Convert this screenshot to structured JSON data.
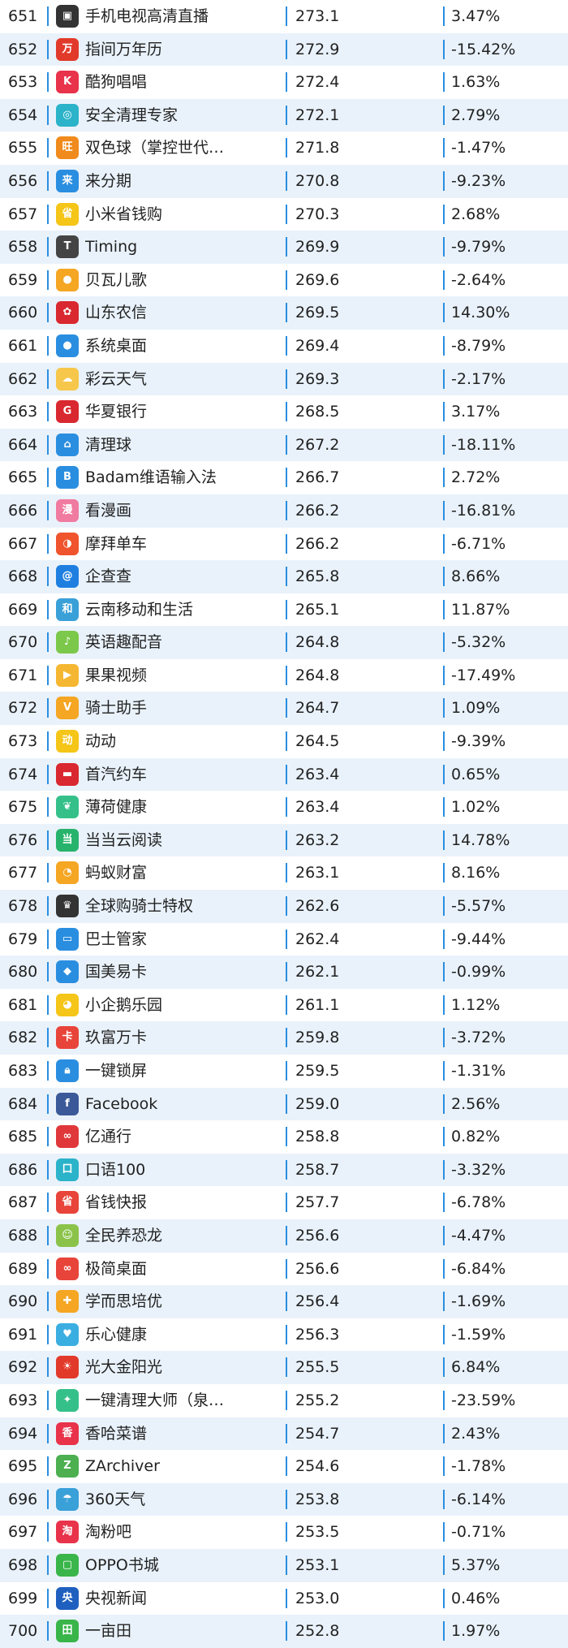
{
  "colors": {
    "row_stripe": "#e9f2fb",
    "separator": "#2a8ee0",
    "text": "#222222"
  },
  "rows": [
    {
      "rank": "651",
      "name": "手机电视高清直播",
      "value": "273.1",
      "change": "3.47%",
      "icon": "tv-icon",
      "color": "#333333",
      "glyph": "▣"
    },
    {
      "rank": "652",
      "name": "指间万年历",
      "value": "272.9",
      "change": "-15.42%",
      "icon": "calendar-icon",
      "color": "#e23a2a",
      "glyph": "万"
    },
    {
      "rank": "653",
      "name": "酷狗唱唱",
      "value": "272.4",
      "change": "1.63%",
      "icon": "kugou-sing-icon",
      "color": "#e8334a",
      "glyph": "K"
    },
    {
      "rank": "654",
      "name": "安全清理专家",
      "value": "272.1",
      "change": "2.79%",
      "icon": "cleaner-icon",
      "color": "#2bb3c9",
      "glyph": "◎"
    },
    {
      "rank": "655",
      "name": "双色球（掌控世代…",
      "value": "271.8",
      "change": "-1.47%",
      "icon": "lottery-icon",
      "color": "#f08a1c",
      "glyph": "旺"
    },
    {
      "rank": "656",
      "name": "来分期",
      "value": "270.8",
      "change": "-9.23%",
      "icon": "installment-icon",
      "color": "#2a8ee0",
      "glyph": "来"
    },
    {
      "rank": "657",
      "name": "小米省钱购",
      "value": "270.3",
      "change": "2.68%",
      "icon": "shopping-icon",
      "color": "#f5c518",
      "glyph": "省"
    },
    {
      "rank": "658",
      "name": "Timing",
      "value": "269.9",
      "change": "-9.79%",
      "icon": "timing-icon",
      "color": "#444444",
      "glyph": "T"
    },
    {
      "rank": "659",
      "name": "贝瓦儿歌",
      "value": "269.6",
      "change": "-2.64%",
      "icon": "kids-song-icon",
      "color": "#f5a623",
      "glyph": "●"
    },
    {
      "rank": "660",
      "name": "山东农信",
      "value": "269.5",
      "change": "14.30%",
      "icon": "bank-icon",
      "color": "#d9282f",
      "glyph": "✿"
    },
    {
      "rank": "661",
      "name": "系统桌面",
      "value": "269.4",
      "change": "-8.79%",
      "icon": "launcher-icon",
      "color": "#2a8ee0",
      "glyph": "●"
    },
    {
      "rank": "662",
      "name": "彩云天气",
      "value": "269.3",
      "change": "-2.17%",
      "icon": "weather-icon",
      "color": "#f6c74a",
      "glyph": "☁"
    },
    {
      "rank": "663",
      "name": "华夏银行",
      "value": "268.5",
      "change": "3.17%",
      "icon": "hxb-bank-icon",
      "color": "#d9282f",
      "glyph": "G"
    },
    {
      "rank": "664",
      "name": "清理球",
      "value": "267.2",
      "change": "-18.11%",
      "icon": "clean-ball-icon",
      "color": "#2a8ee0",
      "glyph": "⌂"
    },
    {
      "rank": "665",
      "name": "Badam维语输入法",
      "value": "266.7",
      "change": "2.72%",
      "icon": "keyboard-icon",
      "color": "#2a8ee0",
      "glyph": "B"
    },
    {
      "rank": "666",
      "name": "看漫画",
      "value": "266.2",
      "change": "-16.81%",
      "icon": "comic-icon",
      "color": "#f07aa0",
      "glyph": "漫"
    },
    {
      "rank": "667",
      "name": "摩拜单车",
      "value": "266.2",
      "change": "-6.71%",
      "icon": "bike-icon",
      "color": "#f0542d",
      "glyph": "◑"
    },
    {
      "rank": "668",
      "name": "企查查",
      "value": "265.8",
      "change": "8.66%",
      "icon": "company-search-icon",
      "color": "#1f7fe0",
      "glyph": "@"
    },
    {
      "rank": "669",
      "name": "云南移动和生活",
      "value": "265.1",
      "change": "11.87%",
      "icon": "mobile-life-icon",
      "color": "#3aa0d8",
      "glyph": "和"
    },
    {
      "rank": "670",
      "name": "英语趣配音",
      "value": "264.8",
      "change": "-5.32%",
      "icon": "dubbing-icon",
      "color": "#7cc84a",
      "glyph": "♪"
    },
    {
      "rank": "671",
      "name": "果果视频",
      "value": "264.8",
      "change": "-17.49%",
      "icon": "video-icon",
      "color": "#f5b731",
      "glyph": "▶"
    },
    {
      "rank": "672",
      "name": "骑士助手",
      "value": "264.7",
      "change": "1.09%",
      "icon": "knight-icon",
      "color": "#f5a623",
      "glyph": "V"
    },
    {
      "rank": "673",
      "name": "动动",
      "value": "264.5",
      "change": "-9.39%",
      "icon": "sport-icon",
      "color": "#f5c518",
      "glyph": "动"
    },
    {
      "rank": "674",
      "name": "首汽约车",
      "value": "263.4",
      "change": "0.65%",
      "icon": "car-icon",
      "color": "#d9282f",
      "glyph": "▬"
    },
    {
      "rank": "675",
      "name": "薄荷健康",
      "value": "263.4",
      "change": "1.02%",
      "icon": "mint-icon",
      "color": "#35c08a",
      "glyph": "❦"
    },
    {
      "rank": "676",
      "name": "当当云阅读",
      "value": "263.2",
      "change": "14.78%",
      "icon": "reading-icon",
      "color": "#27b36b",
      "glyph": "当"
    },
    {
      "rank": "677",
      "name": "蚂蚁财富",
      "value": "263.1",
      "change": "8.16%",
      "icon": "ant-fortune-icon",
      "color": "#f5a623",
      "glyph": "◔"
    },
    {
      "rank": "678",
      "name": "全球购骑士特权",
      "value": "262.6",
      "change": "-5.57%",
      "icon": "vip-icon",
      "color": "#333333",
      "glyph": "♛"
    },
    {
      "rank": "679",
      "name": "巴士管家",
      "value": "262.4",
      "change": "-9.44%",
      "icon": "bus-icon",
      "color": "#2a8ee0",
      "glyph": "▭"
    },
    {
      "rank": "680",
      "name": "国美易卡",
      "value": "262.1",
      "change": "-0.99%",
      "icon": "card-icon",
      "color": "#2a8ee0",
      "glyph": "◆"
    },
    {
      "rank": "681",
      "name": "小企鹅乐园",
      "value": "261.1",
      "change": "1.12%",
      "icon": "penguin-icon",
      "color": "#f5c518",
      "glyph": "◕"
    },
    {
      "rank": "682",
      "name": "玖富万卡",
      "value": "259.8",
      "change": "-3.72%",
      "icon": "credit-icon",
      "color": "#e8443a",
      "glyph": "卡"
    },
    {
      "rank": "683",
      "name": "一键锁屏",
      "value": "259.5",
      "change": "-1.31%",
      "icon": "lock-icon",
      "color": "#2a8ee0",
      "glyph": "🔒︎"
    },
    {
      "rank": "684",
      "name": "Facebook",
      "value": "259.0",
      "change": "2.56%",
      "icon": "facebook-icon",
      "color": "#3b5998",
      "glyph": "f"
    },
    {
      "rank": "685",
      "name": "亿通行",
      "value": "258.8",
      "change": "0.82%",
      "icon": "transit-icon",
      "color": "#e0383a",
      "glyph": "∞"
    },
    {
      "rank": "686",
      "name": "口语100",
      "value": "258.7",
      "change": "-3.32%",
      "icon": "speaking-icon",
      "color": "#2bb3c9",
      "glyph": "口"
    },
    {
      "rank": "687",
      "name": "省钱快报",
      "value": "257.7",
      "change": "-6.78%",
      "icon": "saving-icon",
      "color": "#e8443a",
      "glyph": "省"
    },
    {
      "rank": "688",
      "name": "全民养恐龙",
      "value": "256.6",
      "change": "-4.47%",
      "icon": "dinosaur-icon",
      "color": "#8bc34a",
      "glyph": "☺"
    },
    {
      "rank": "689",
      "name": "极简桌面",
      "value": "256.6",
      "change": "-6.84%",
      "icon": "minimal-launcher-icon",
      "color": "#e8443a",
      "glyph": "∞"
    },
    {
      "rank": "690",
      "name": "学而思培优",
      "value": "256.4",
      "change": "-1.69%",
      "icon": "education-icon",
      "color": "#f5a623",
      "glyph": "✚"
    },
    {
      "rank": "691",
      "name": "乐心健康",
      "value": "256.3",
      "change": "-1.59%",
      "icon": "health-icon",
      "color": "#3aaee0",
      "glyph": "♥"
    },
    {
      "rank": "692",
      "name": "光大金阳光",
      "value": "255.5",
      "change": "6.84%",
      "icon": "sunshine-bank-icon",
      "color": "#e23a2a",
      "glyph": "☀"
    },
    {
      "rank": "693",
      "name": "一键清理大师（泉…",
      "value": "255.2",
      "change": "-23.59%",
      "icon": "broom-icon",
      "color": "#35c08a",
      "glyph": "✦"
    },
    {
      "rank": "694",
      "name": "香哈菜谱",
      "value": "254.7",
      "change": "2.43%",
      "icon": "recipe-icon",
      "color": "#e8334a",
      "glyph": "香"
    },
    {
      "rank": "695",
      "name": "ZArchiver",
      "value": "254.6",
      "change": "-1.78%",
      "icon": "archive-icon",
      "color": "#4caf50",
      "glyph": "Z"
    },
    {
      "rank": "696",
      "name": "360天气",
      "value": "253.8",
      "change": "-6.14%",
      "icon": "weather-360-icon",
      "color": "#3aa0d8",
      "glyph": "☂"
    },
    {
      "rank": "697",
      "name": "淘粉吧",
      "value": "253.5",
      "change": "-0.71%",
      "icon": "taofen-icon",
      "color": "#e8334a",
      "glyph": "淘"
    },
    {
      "rank": "698",
      "name": "OPPO书城",
      "value": "253.1",
      "change": "5.37%",
      "icon": "bookstore-icon",
      "color": "#3ab54a",
      "glyph": "▢"
    },
    {
      "rank": "699",
      "name": "央视新闻",
      "value": "253.0",
      "change": "0.46%",
      "icon": "cctv-news-icon",
      "color": "#1f5fbf",
      "glyph": "央"
    },
    {
      "rank": "700",
      "name": "一亩田",
      "value": "252.8",
      "change": "1.97%",
      "icon": "farm-icon",
      "color": "#3ab54a",
      "glyph": "田"
    }
  ]
}
